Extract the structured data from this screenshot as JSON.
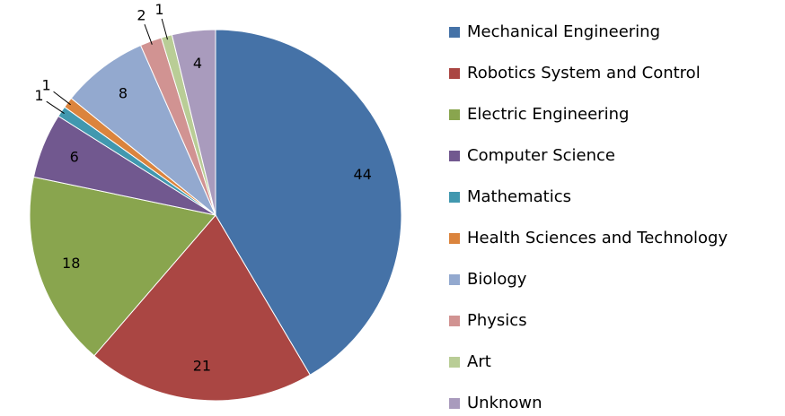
{
  "chart_data": {
    "type": "pie",
    "categories": [
      "Mechanical Engineering",
      "Robotics System and Control",
      "Electric Engineering",
      "Computer Science",
      "Mathematics",
      "Health Sciences and Technology",
      "Biology",
      "Physics",
      "Art",
      "Unknown"
    ],
    "values": [
      44,
      21,
      18,
      6,
      1,
      1,
      8,
      2,
      1,
      4
    ],
    "colors": [
      "#4572a7",
      "#aa4643",
      "#89a54e",
      "#71588f",
      "#4198af",
      "#db843d",
      "#93a9cf",
      "#d19392",
      "#b9cd96",
      "#a99bbd"
    ],
    "legend": "right"
  }
}
